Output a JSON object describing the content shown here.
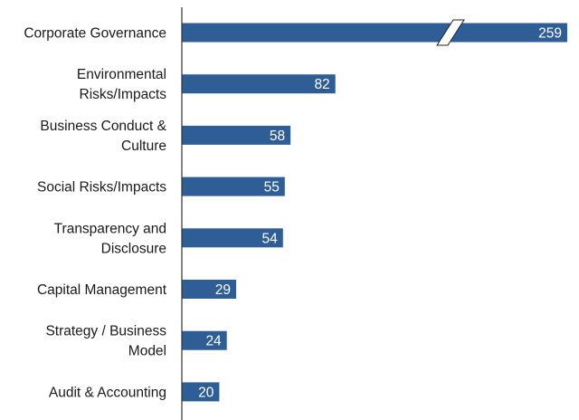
{
  "chart_data": {
    "type": "bar",
    "orientation": "horizontal",
    "categories": [
      "Corporate Governance",
      "Environmental Risks/Impacts",
      "Business Conduct & Culture",
      "Social Risks/Impacts",
      "Transparency and Disclosure",
      "Capital Management",
      "Strategy / Business Model",
      "Audit & Accounting"
    ],
    "category_lines": [
      [
        "Corporate Governance"
      ],
      [
        "Environmental",
        "Risks/Impacts"
      ],
      [
        "Business Conduct &",
        "Culture"
      ],
      [
        "Social Risks/Impacts"
      ],
      [
        "Transparency and",
        "Disclosure"
      ],
      [
        "Capital Management"
      ],
      [
        "Strategy / Business",
        "Model"
      ],
      [
        "Audit & Accounting"
      ]
    ],
    "values": [
      259,
      82,
      58,
      55,
      54,
      29,
      24,
      20
    ],
    "value_labels": [
      "259",
      "82",
      "58",
      "55",
      "54",
      "29",
      "24",
      "20"
    ],
    "broken_bar_index": 0,
    "title": "",
    "xlabel": "",
    "ylabel": "",
    "grid": false,
    "bar_color": "#2f5e96",
    "label_color": "#ffffff",
    "text_color": "#1a1a1a",
    "axis_color": "#333333"
  }
}
